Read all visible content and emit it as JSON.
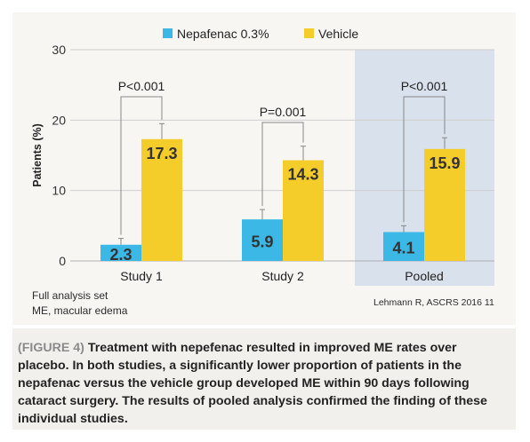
{
  "legend": [
    {
      "label": "Nepafenac 0.3%",
      "color": "#3bb8e6"
    },
    {
      "label": "Vehicle",
      "color": "#f5cd2b"
    }
  ],
  "chart_data": {
    "type": "bar",
    "categories": [
      "Study 1",
      "Study 2",
      "Pooled"
    ],
    "series": [
      {
        "name": "Nepafenac 0.3%",
        "values": [
          2.3,
          5.9,
          4.1
        ],
        "labels": [
          "2.3",
          "5.9",
          "4.1"
        ],
        "error_upper": [
          3.2,
          7.3,
          5.0
        ],
        "color": "#3bb8e6"
      },
      {
        "name": "Vehicle",
        "values": [
          17.3,
          14.3,
          15.9
        ],
        "labels": [
          "17.3",
          "14.3",
          "15.9"
        ],
        "error_upper": [
          19.5,
          16.3,
          17.5
        ],
        "color": "#f5cd2b"
      }
    ],
    "p_values": [
      "P<0.001",
      "P=0.001",
      "P<0.001"
    ],
    "ylabel": "Patients (%)",
    "yticks": [
      0,
      10,
      20,
      30
    ],
    "ylim": [
      0,
      30
    ],
    "highlight_category": "Pooled",
    "highlight_color": "#d9e1ec",
    "grid": true
  },
  "footnotes": {
    "left_line1": "Full analysis set",
    "left_line2": "ME, macular edema",
    "source": "Lehmann R, ASCRS 2016 11"
  },
  "caption": {
    "label": "(FIGURE 4)",
    "text": "Treatment with nepefenac resulted in improved ME rates over placebo. In both studies, a significantly lower proportion of patients in the nepafenac versus the vehicle group developed ME within 90 days following cataract surgery. The results of pooled analysis confirmed the finding of these individual studies."
  }
}
